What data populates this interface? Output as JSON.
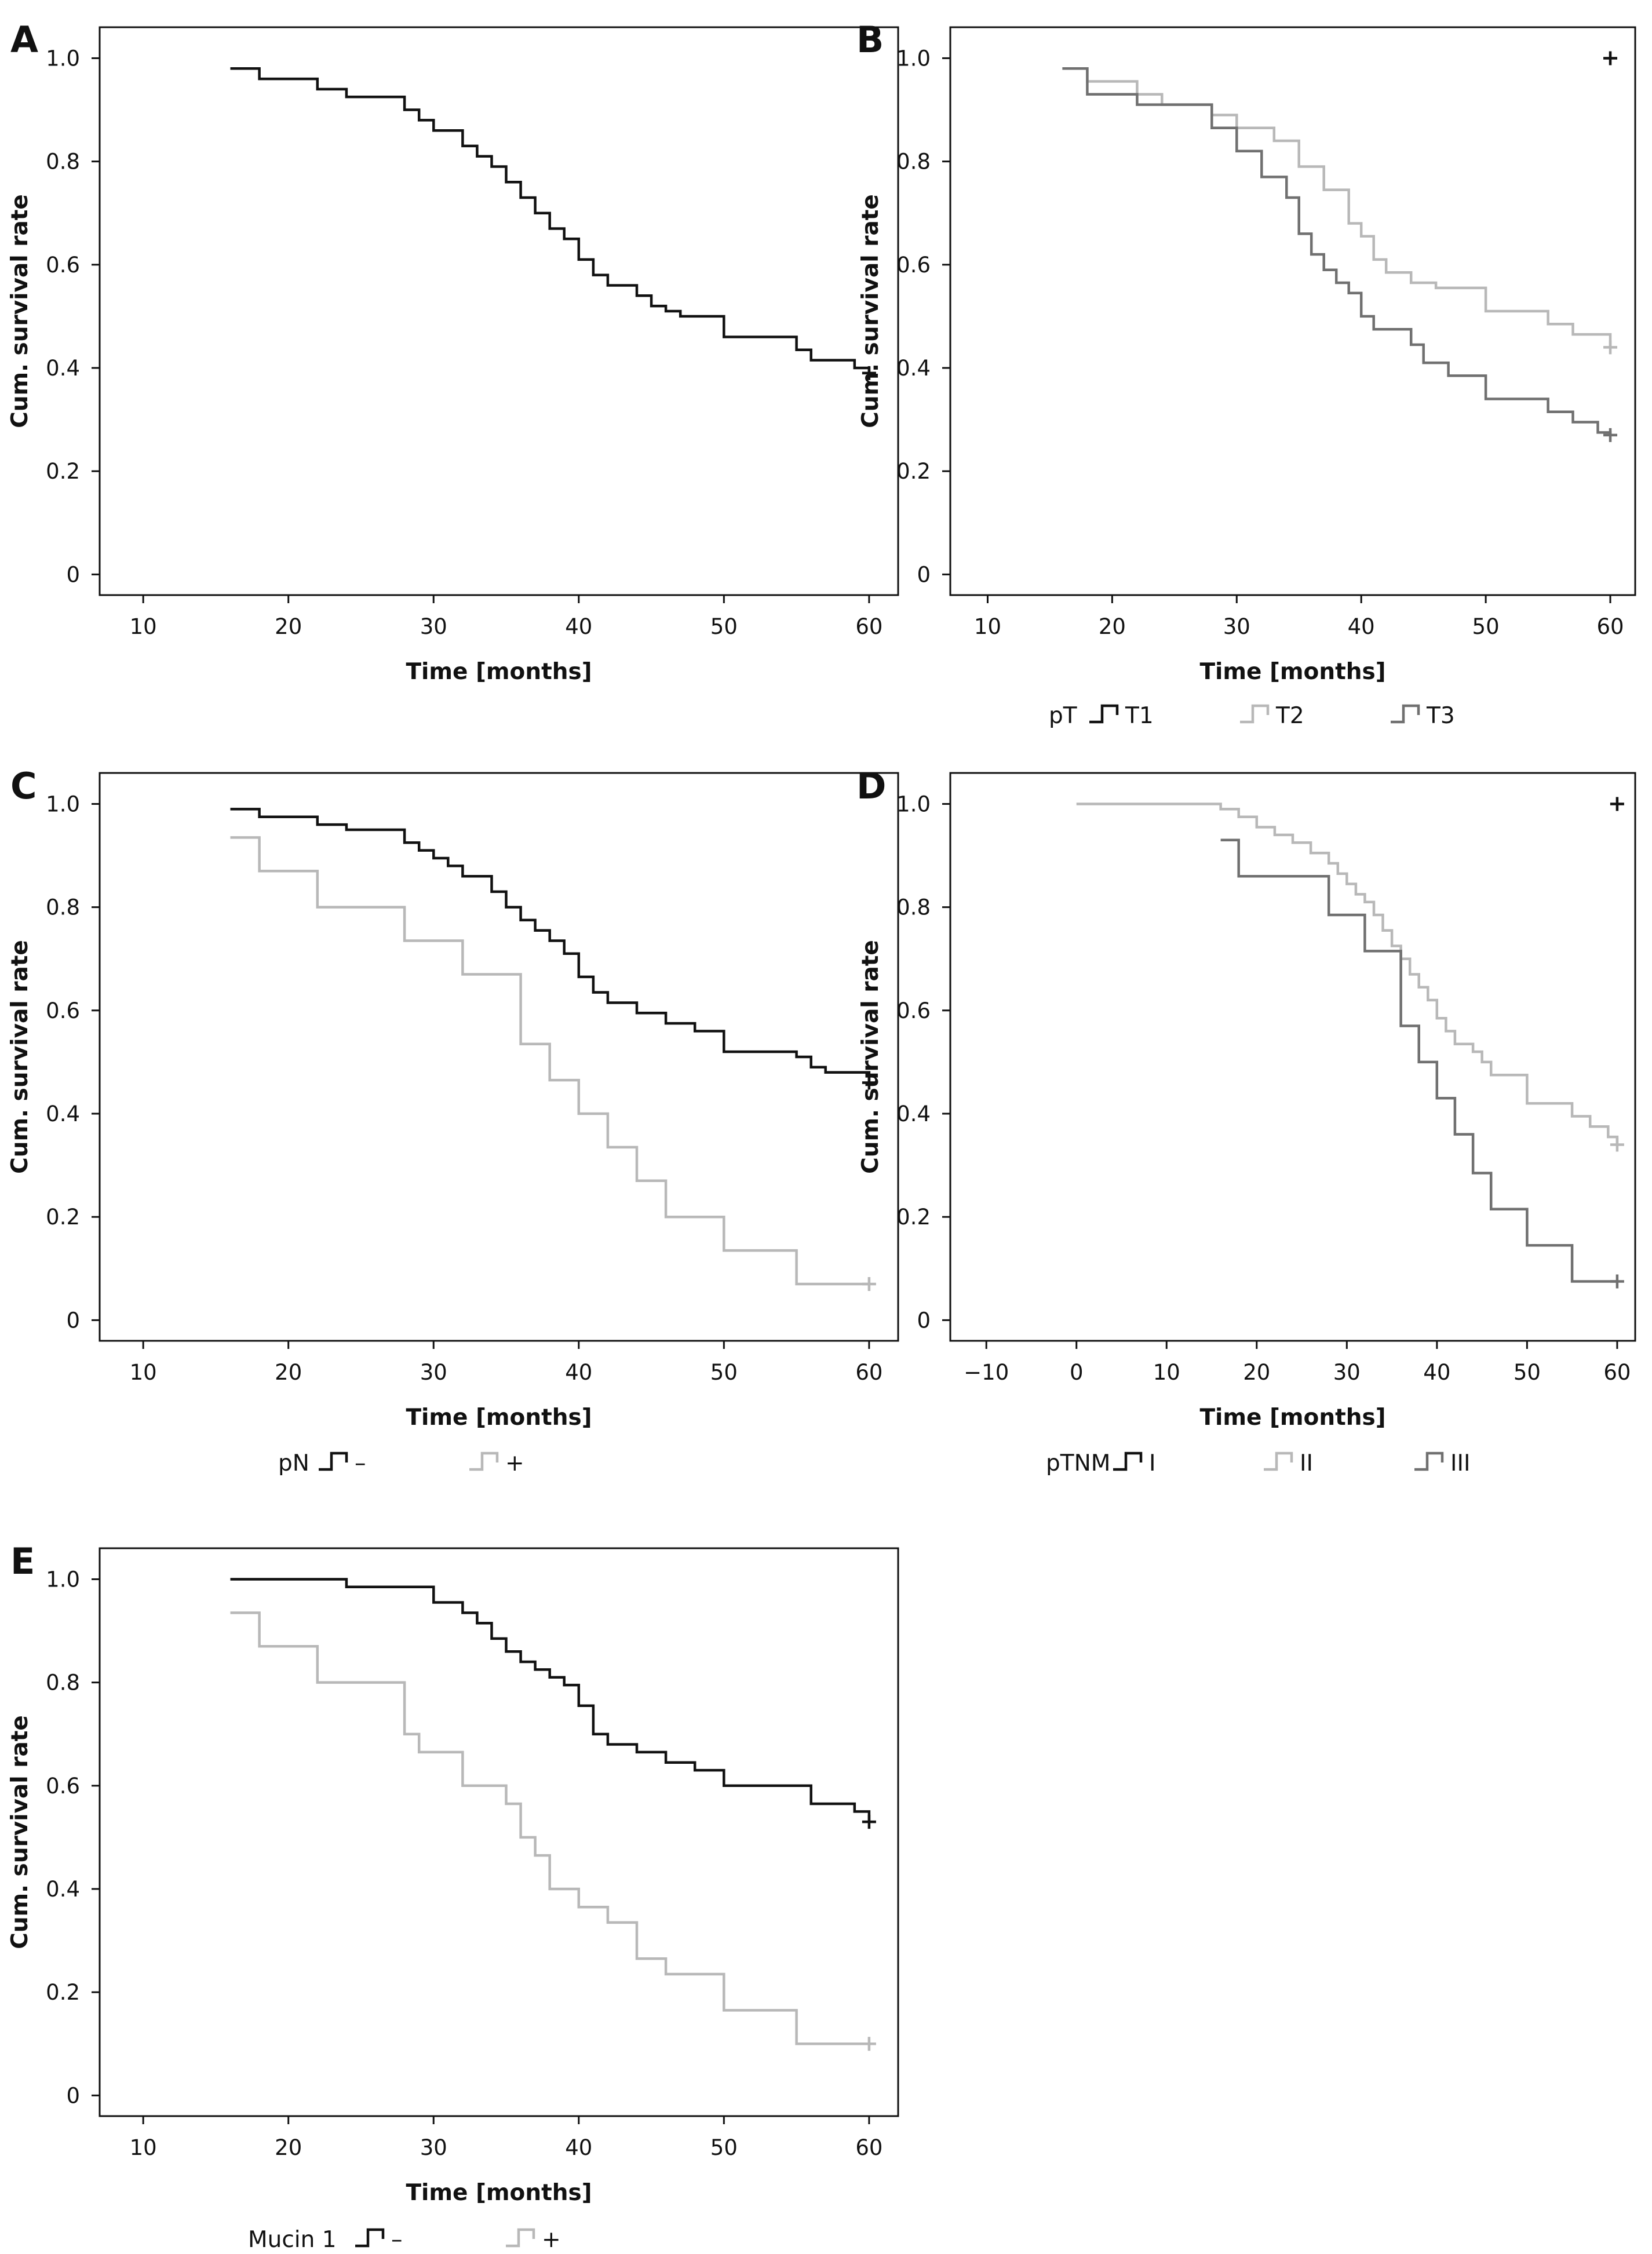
{
  "colors": {
    "black": "#111111",
    "light_gray": "#b8b8b8",
    "dark_gray": "#707070",
    "background": "#ffffff"
  },
  "chart_data": [
    {
      "type": "line",
      "panel_label": "A",
      "xlabel": "Time [months]",
      "ylabel": "Cum. survival rate",
      "xlim": [
        7,
        62
      ],
      "ylim": [
        -0.04,
        1.06
      ],
      "xticks": [
        10,
        20,
        30,
        40,
        50,
        60
      ],
      "yticks": [
        0,
        0.2,
        0.4,
        0.6,
        0.8,
        1.0
      ],
      "ytick_labels": [
        "0",
        "0.2",
        "0.4",
        "0.6",
        "0.8",
        "1.0"
      ],
      "legend": null,
      "series": [
        {
          "color": "#111111",
          "step": true,
          "censor_mark": [
            60,
            0.39
          ],
          "x": [
            16,
            18,
            22,
            24,
            28,
            29,
            30,
            32,
            33,
            34,
            35,
            36,
            37,
            38,
            39,
            40,
            41,
            42,
            44,
            45,
            46,
            47,
            50,
            55,
            56,
            59,
            60
          ],
          "y": [
            0.98,
            0.96,
            0.94,
            0.925,
            0.9,
            0.88,
            0.86,
            0.83,
            0.81,
            0.79,
            0.76,
            0.73,
            0.7,
            0.67,
            0.65,
            0.61,
            0.58,
            0.56,
            0.54,
            0.52,
            0.51,
            0.5,
            0.46,
            0.435,
            0.415,
            0.4,
            0.39
          ]
        }
      ]
    },
    {
      "type": "line",
      "panel_label": "B",
      "xlabel": "Time [months]",
      "ylabel": "Cum. survival rate",
      "xlim": [
        7,
        62
      ],
      "ylim": [
        -0.04,
        1.06
      ],
      "xticks": [
        10,
        20,
        30,
        40,
        50,
        60
      ],
      "yticks": [
        0,
        0.2,
        0.4,
        0.6,
        0.8,
        1.0
      ],
      "ytick_labels": [
        "0",
        "0.2",
        "0.4",
        "0.6",
        "0.8",
        "1.0"
      ],
      "legend": {
        "title": "pT",
        "entries": [
          {
            "label": "T1",
            "color": "#111111"
          },
          {
            "label": "T2",
            "color": "#b8b8b8"
          },
          {
            "label": "T3",
            "color": "#707070"
          }
        ]
      },
      "series": [
        {
          "name": "T1",
          "color": "#111111",
          "step": false,
          "censor_mark": [
            60,
            1.0
          ],
          "x": [],
          "y": []
        },
        {
          "name": "T2",
          "color": "#b8b8b8",
          "step": true,
          "censor_mark": [
            60,
            0.44
          ],
          "x": [
            16,
            18,
            22,
            24,
            28,
            30,
            33,
            35,
            37,
            39,
            40,
            41,
            42,
            44,
            46,
            50,
            55,
            57,
            60
          ],
          "y": [
            0.98,
            0.955,
            0.93,
            0.91,
            0.89,
            0.865,
            0.84,
            0.79,
            0.745,
            0.68,
            0.655,
            0.61,
            0.585,
            0.565,
            0.555,
            0.51,
            0.485,
            0.465,
            0.44
          ]
        },
        {
          "name": "T3",
          "color": "#707070",
          "step": true,
          "censor_mark": [
            60,
            0.27
          ],
          "x": [
            16,
            18,
            22,
            28,
            30,
            32,
            34,
            35,
            36,
            37,
            38,
            39,
            40,
            41,
            44,
            45,
            47,
            50,
            55,
            57,
            59,
            60
          ],
          "y": [
            0.98,
            0.93,
            0.91,
            0.865,
            0.82,
            0.77,
            0.73,
            0.66,
            0.62,
            0.59,
            0.565,
            0.545,
            0.5,
            0.475,
            0.445,
            0.41,
            0.385,
            0.34,
            0.315,
            0.295,
            0.275,
            0.27
          ]
        }
      ]
    },
    {
      "type": "line",
      "panel_label": "C",
      "xlabel": "Time [months]",
      "ylabel": "Cum. survival rate",
      "xlim": [
        7,
        62
      ],
      "ylim": [
        -0.04,
        1.06
      ],
      "xticks": [
        10,
        20,
        30,
        40,
        50,
        60
      ],
      "yticks": [
        0,
        0.2,
        0.4,
        0.6,
        0.8,
        1.0
      ],
      "ytick_labels": [
        "0",
        "0.2",
        "0.4",
        "0.6",
        "0.8",
        "1.0"
      ],
      "legend": {
        "title": "pN",
        "entries": [
          {
            "label": "–",
            "color": "#111111"
          },
          {
            "label": "+",
            "color": "#b8b8b8"
          }
        ]
      },
      "series": [
        {
          "name": "–",
          "color": "#111111",
          "step": true,
          "censor_mark": [
            60,
            0.46
          ],
          "x": [
            16,
            18,
            22,
            24,
            28,
            29,
            30,
            31,
            32,
            34,
            35,
            36,
            37,
            38,
            39,
            40,
            41,
            42,
            44,
            46,
            48,
            50,
            55,
            56,
            57,
            60
          ],
          "y": [
            0.99,
            0.975,
            0.96,
            0.95,
            0.925,
            0.91,
            0.895,
            0.88,
            0.86,
            0.83,
            0.8,
            0.775,
            0.755,
            0.735,
            0.71,
            0.665,
            0.635,
            0.615,
            0.595,
            0.575,
            0.56,
            0.52,
            0.51,
            0.49,
            0.48,
            0.46
          ]
        },
        {
          "name": "+",
          "color": "#b8b8b8",
          "step": true,
          "censor_mark": [
            60,
            0.07
          ],
          "x": [
            16,
            18,
            22,
            28,
            32,
            36,
            38,
            40,
            42,
            44,
            46,
            50,
            55,
            60
          ],
          "y": [
            0.935,
            0.87,
            0.8,
            0.735,
            0.67,
            0.535,
            0.465,
            0.4,
            0.335,
            0.27,
            0.2,
            0.135,
            0.07,
            0.07
          ]
        }
      ]
    },
    {
      "type": "line",
      "panel_label": "D",
      "xlabel": "Time [months]",
      "ylabel": "Cum. survival rate",
      "xlim": [
        -14,
        62
      ],
      "ylim": [
        -0.04,
        1.06
      ],
      "xticks": [
        -10,
        0,
        10,
        20,
        30,
        40,
        50,
        60
      ],
      "xtick_labels": [
        "−10",
        "0",
        "10",
        "20",
        "30",
        "40",
        "50",
        "60"
      ],
      "yticks": [
        0,
        0.2,
        0.4,
        0.6,
        0.8,
        1.0
      ],
      "ytick_labels": [
        "0",
        "0.2",
        "0.4",
        "0.6",
        "0.8",
        "1.0"
      ],
      "legend": {
        "title": "pTNM",
        "entries": [
          {
            "label": "I",
            "color": "#111111"
          },
          {
            "label": "II",
            "color": "#b8b8b8"
          },
          {
            "label": "III",
            "color": "#707070"
          }
        ]
      },
      "series": [
        {
          "name": "I",
          "color": "#111111",
          "step": false,
          "censor_mark": [
            60,
            1.0
          ],
          "x": [],
          "y": []
        },
        {
          "name": "II",
          "color": "#b8b8b8",
          "step": true,
          "censor_mark": [
            60,
            0.34
          ],
          "x": [
            0,
            16,
            18,
            20,
            22,
            24,
            26,
            28,
            29,
            30,
            31,
            32,
            33,
            34,
            35,
            36,
            37,
            38,
            39,
            40,
            41,
            42,
            44,
            45,
            46,
            50,
            55,
            57,
            59,
            60
          ],
          "y": [
            1.0,
            0.99,
            0.975,
            0.955,
            0.94,
            0.925,
            0.905,
            0.885,
            0.865,
            0.845,
            0.825,
            0.81,
            0.785,
            0.755,
            0.725,
            0.7,
            0.67,
            0.645,
            0.62,
            0.585,
            0.56,
            0.535,
            0.52,
            0.5,
            0.475,
            0.42,
            0.395,
            0.375,
            0.355,
            0.34
          ]
        },
        {
          "name": "III",
          "color": "#707070",
          "step": true,
          "censor_mark": [
            60,
            0.075
          ],
          "x": [
            16,
            18,
            28,
            32,
            36,
            38,
            40,
            42,
            44,
            46,
            50,
            55,
            60
          ],
          "y": [
            0.93,
            0.86,
            0.785,
            0.715,
            0.57,
            0.5,
            0.43,
            0.36,
            0.285,
            0.215,
            0.145,
            0.075,
            0.075
          ]
        }
      ]
    },
    {
      "type": "line",
      "panel_label": "E",
      "xlabel": "Time [months]",
      "ylabel": "Cum. survival rate",
      "xlim": [
        7,
        62
      ],
      "ylim": [
        -0.04,
        1.06
      ],
      "xticks": [
        10,
        20,
        30,
        40,
        50,
        60
      ],
      "yticks": [
        0,
        0.2,
        0.4,
        0.6,
        0.8,
        1.0
      ],
      "ytick_labels": [
        "0",
        "0.2",
        "0.4",
        "0.6",
        "0.8",
        "1.0"
      ],
      "legend": {
        "title": "Mucin 1",
        "entries": [
          {
            "label": "–",
            "color": "#111111"
          },
          {
            "label": "+",
            "color": "#b8b8b8"
          }
        ]
      },
      "series": [
        {
          "name": "–",
          "color": "#111111",
          "step": true,
          "censor_mark": [
            60,
            0.53
          ],
          "x": [
            16,
            24,
            30,
            32,
            33,
            34,
            35,
            36,
            37,
            38,
            39,
            40,
            41,
            42,
            44,
            46,
            48,
            50,
            56,
            59,
            60
          ],
          "y": [
            1.0,
            0.985,
            0.955,
            0.935,
            0.915,
            0.885,
            0.86,
            0.84,
            0.825,
            0.81,
            0.795,
            0.755,
            0.7,
            0.68,
            0.665,
            0.645,
            0.63,
            0.6,
            0.565,
            0.55,
            0.53
          ]
        },
        {
          "name": "+",
          "color": "#b8b8b8",
          "step": true,
          "censor_mark": [
            60,
            0.1
          ],
          "x": [
            16,
            18,
            22,
            28,
            29,
            32,
            35,
            36,
            37,
            38,
            40,
            42,
            44,
            46,
            50,
            55,
            60
          ],
          "y": [
            0.935,
            0.87,
            0.8,
            0.7,
            0.665,
            0.6,
            0.565,
            0.5,
            0.465,
            0.4,
            0.365,
            0.335,
            0.265,
            0.235,
            0.165,
            0.1,
            0.1
          ]
        }
      ]
    }
  ]
}
